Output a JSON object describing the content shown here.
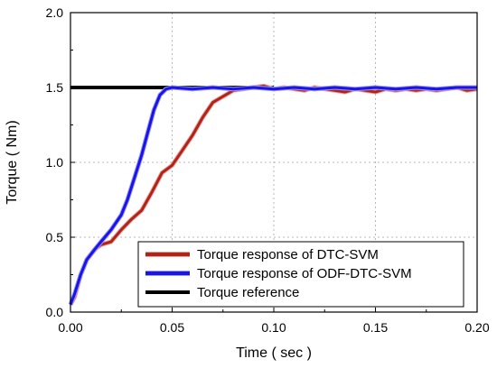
{
  "chart_data": {
    "type": "line",
    "xlabel": "Time ( sec )",
    "ylabel": "Torque ( Nm)",
    "xlim": [
      0,
      0.2
    ],
    "ylim": [
      0,
      2.0
    ],
    "x_ticks": [
      "0.00",
      "0.05",
      "0.10",
      "0.15",
      "0.20"
    ],
    "y_ticks": [
      "0.0",
      "0.5",
      "1.0",
      "1.5",
      "2.0"
    ],
    "grid": "dotted",
    "legend_position": "bottom-right",
    "series": [
      {
        "name": "Torque response of DTC-SVM",
        "color": "#b02418",
        "outline": "#e8a3a0",
        "x": [
          0,
          0.002,
          0.005,
          0.008,
          0.012,
          0.015,
          0.02,
          0.025,
          0.03,
          0.035,
          0.04,
          0.045,
          0.05,
          0.055,
          0.06,
          0.065,
          0.07,
          0.075,
          0.08,
          0.085,
          0.09,
          0.095,
          0.1,
          0.105,
          0.11,
          0.115,
          0.12,
          0.125,
          0.13,
          0.135,
          0.14,
          0.145,
          0.15,
          0.155,
          0.16,
          0.165,
          0.17,
          0.175,
          0.18,
          0.185,
          0.19,
          0.195,
          0.2
        ],
        "y": [
          0.05,
          0.1,
          0.25,
          0.35,
          0.42,
          0.45,
          0.47,
          0.55,
          0.62,
          0.68,
          0.8,
          0.93,
          0.98,
          1.08,
          1.18,
          1.3,
          1.4,
          1.44,
          1.48,
          1.49,
          1.5,
          1.51,
          1.49,
          1.5,
          1.49,
          1.48,
          1.5,
          1.49,
          1.48,
          1.47,
          1.49,
          1.48,
          1.47,
          1.49,
          1.48,
          1.49,
          1.48,
          1.49,
          1.48,
          1.49,
          1.5,
          1.48,
          1.49
        ]
      },
      {
        "name": "Torque response of ODF-DTC-SVM",
        "color": "#1a14e8",
        "outline": "#9b9bf2",
        "x": [
          0,
          0.002,
          0.005,
          0.008,
          0.012,
          0.015,
          0.02,
          0.025,
          0.028,
          0.032,
          0.035,
          0.038,
          0.041,
          0.044,
          0.047,
          0.05,
          0.06,
          0.07,
          0.08,
          0.09,
          0.1,
          0.11,
          0.12,
          0.13,
          0.14,
          0.15,
          0.16,
          0.17,
          0.18,
          0.19,
          0.2
        ],
        "y": [
          0.05,
          0.12,
          0.25,
          0.35,
          0.42,
          0.47,
          0.55,
          0.65,
          0.75,
          0.92,
          1.05,
          1.2,
          1.35,
          1.45,
          1.49,
          1.5,
          1.49,
          1.5,
          1.49,
          1.5,
          1.49,
          1.5,
          1.49,
          1.5,
          1.49,
          1.5,
          1.49,
          1.5,
          1.49,
          1.5,
          1.5
        ]
      },
      {
        "name": "Torque reference",
        "color": "#000000",
        "x": [
          0,
          0.1
        ],
        "y": [
          1.5,
          1.5
        ]
      }
    ]
  }
}
